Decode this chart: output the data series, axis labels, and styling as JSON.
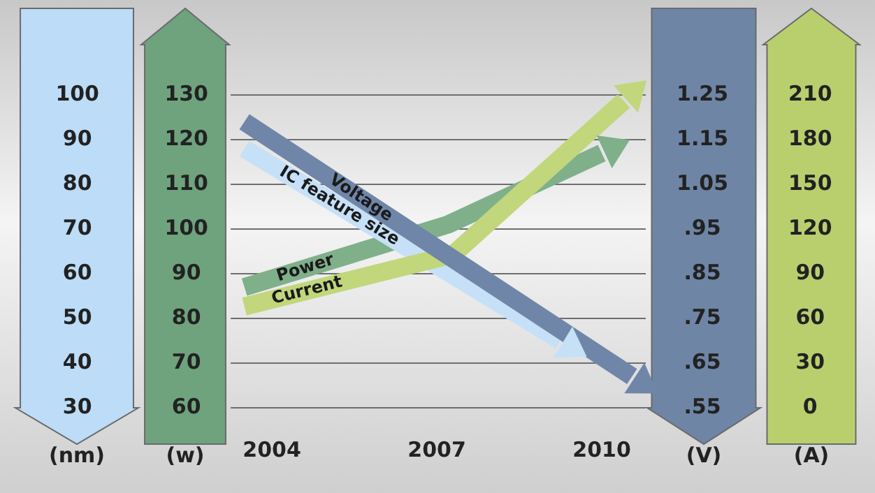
{
  "chart_data": [
    {
      "type": "line",
      "ylabel": "(nm)",
      "y2label": "(w)",
      "xlim": [
        2003.25,
        2010.8
      ],
      "xticks": [
        2004,
        2007,
        2010
      ],
      "ylim": [
        30,
        100
      ],
      "yticks": [
        30,
        40,
        50,
        60,
        70,
        80,
        90,
        100
      ],
      "y2lim": [
        60,
        130
      ],
      "y2ticks": [
        60,
        70,
        80,
        90,
        100,
        110,
        120,
        130
      ],
      "grid": "y",
      "legend": false,
      "marker": "none",
      "line_style": "solid",
      "series": [
        {
          "name": "IC feature size",
          "color": "#c6e0f7",
          "axis": "y",
          "x": [
            2003.5,
            2009.25
          ],
          "values": [
            88,
            45
          ]
        },
        {
          "name": "Power",
          "color": "#7fb08a",
          "axis": "y2",
          "x": [
            2003.5,
            2007.2,
            2010
          ],
          "values": [
            87,
            101,
            117
          ]
        }
      ]
    },
    {
      "type": "line",
      "ylabel": "(V)",
      "y2label": "(A)",
      "xlim": [
        2003.25,
        2010.8
      ],
      "tick_labels": "y",
      "ylim": [
        0.55,
        1.25
      ],
      "yticks": [
        {
          "value": 0.55,
          "label": ".55"
        },
        {
          "value": 0.65,
          "label": ".65"
        },
        {
          "value": 0.75,
          "label": ".75"
        },
        {
          "value": 0.85,
          "label": ".85"
        },
        {
          "value": 0.95,
          "label": ".95"
        },
        {
          "value": 1.05,
          "label": "1.05"
        },
        {
          "value": 1.15,
          "label": "1.15"
        },
        {
          "value": 1.25,
          "label": "1.25"
        }
      ],
      "y2lim": [
        0,
        210
      ],
      "y2ticks": [
        0,
        30,
        60,
        90,
        120,
        150,
        180,
        210
      ],
      "legend": false,
      "marker": "none",
      "line_style": "solid",
      "series": [
        {
          "name": "Voltage",
          "color": "#6f86a8",
          "axis": "y",
          "x": [
            2003.5,
            2010.55
          ],
          "values": [
            1.19,
            0.62
          ]
        },
        {
          "name": "Current",
          "color": "#c2d67c",
          "axis": "y2",
          "x": [
            2003.5,
            2007.3,
            2010.4
          ],
          "values": [
            68,
            103,
            206
          ]
        }
      ]
    }
  ]
}
